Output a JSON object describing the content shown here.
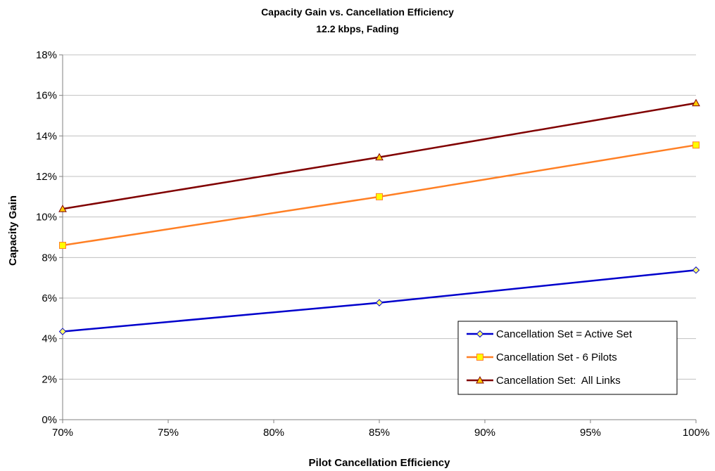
{
  "chart_data": {
    "type": "line",
    "title": "Capacity Gain vs. Cancellation Efficiency",
    "subtitle": "12.2 kbps, Fading",
    "xlabel": "Pilot Cancellation Efficiency",
    "ylabel": "Capacity Gain",
    "x": [
      0.7,
      0.85,
      1.0
    ],
    "xlim": [
      0.7,
      1.0
    ],
    "ylim": [
      0,
      0.18
    ],
    "x_ticks": [
      0.7,
      0.75,
      0.8,
      0.85,
      0.9,
      0.95,
      1.0
    ],
    "x_tick_labels": [
      "70%",
      "75%",
      "80%",
      "85%",
      "90%",
      "95%",
      "100%"
    ],
    "y_ticks": [
      0,
      0.02,
      0.04,
      0.06,
      0.08,
      0.1,
      0.12,
      0.14,
      0.16,
      0.18
    ],
    "y_tick_labels": [
      "0%",
      "2%",
      "4%",
      "6%",
      "8%",
      "10%",
      "12%",
      "14%",
      "16%",
      "18%"
    ],
    "grid": "horizontal",
    "legend_position": "bottom-right",
    "series": [
      {
        "name": "Cancellation Set = Active Set",
        "values": [
          0.0435,
          0.0577,
          0.0738
        ],
        "color": "#0000CC",
        "marker": "diamond",
        "marker_fill": "#FFFF66"
      },
      {
        "name": "Cancellation Set - 6 Pilots",
        "values": [
          0.086,
          0.11,
          0.1355
        ],
        "color": "#FF7F24",
        "marker": "square",
        "marker_fill": "#FFFF00"
      },
      {
        "name": "Cancellation Set:  All Links",
        "values": [
          0.104,
          0.1295,
          0.1562
        ],
        "color": "#800000",
        "marker": "triangle",
        "marker_fill": "#FFCC00"
      }
    ]
  }
}
